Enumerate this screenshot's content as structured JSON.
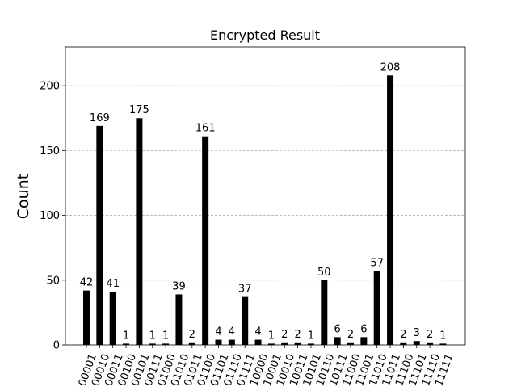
{
  "chart_data": {
    "type": "bar",
    "title": "Encrypted Result",
    "xlabel": "",
    "ylabel": "Count",
    "ylim": [
      0,
      230
    ],
    "yticks": [
      0,
      50,
      100,
      150,
      200
    ],
    "grid": "horizontal-dashed",
    "legend": "none",
    "bar_color": "#000000",
    "categories": [
      "00001",
      "00010",
      "00011",
      "00100",
      "00101",
      "00111",
      "01000",
      "01010",
      "01011",
      "01100",
      "01101",
      "01110",
      "01111",
      "10000",
      "10001",
      "10010",
      "10011",
      "10101",
      "10110",
      "10111",
      "11000",
      "11001",
      "11010",
      "11011",
      "11100",
      "11101",
      "11110",
      "11111"
    ],
    "values": [
      42,
      169,
      41,
      1,
      175,
      1,
      1,
      39,
      2,
      161,
      4,
      4,
      37,
      4,
      1,
      2,
      2,
      1,
      50,
      6,
      2,
      6,
      57,
      208,
      2,
      3,
      2,
      1
    ]
  }
}
